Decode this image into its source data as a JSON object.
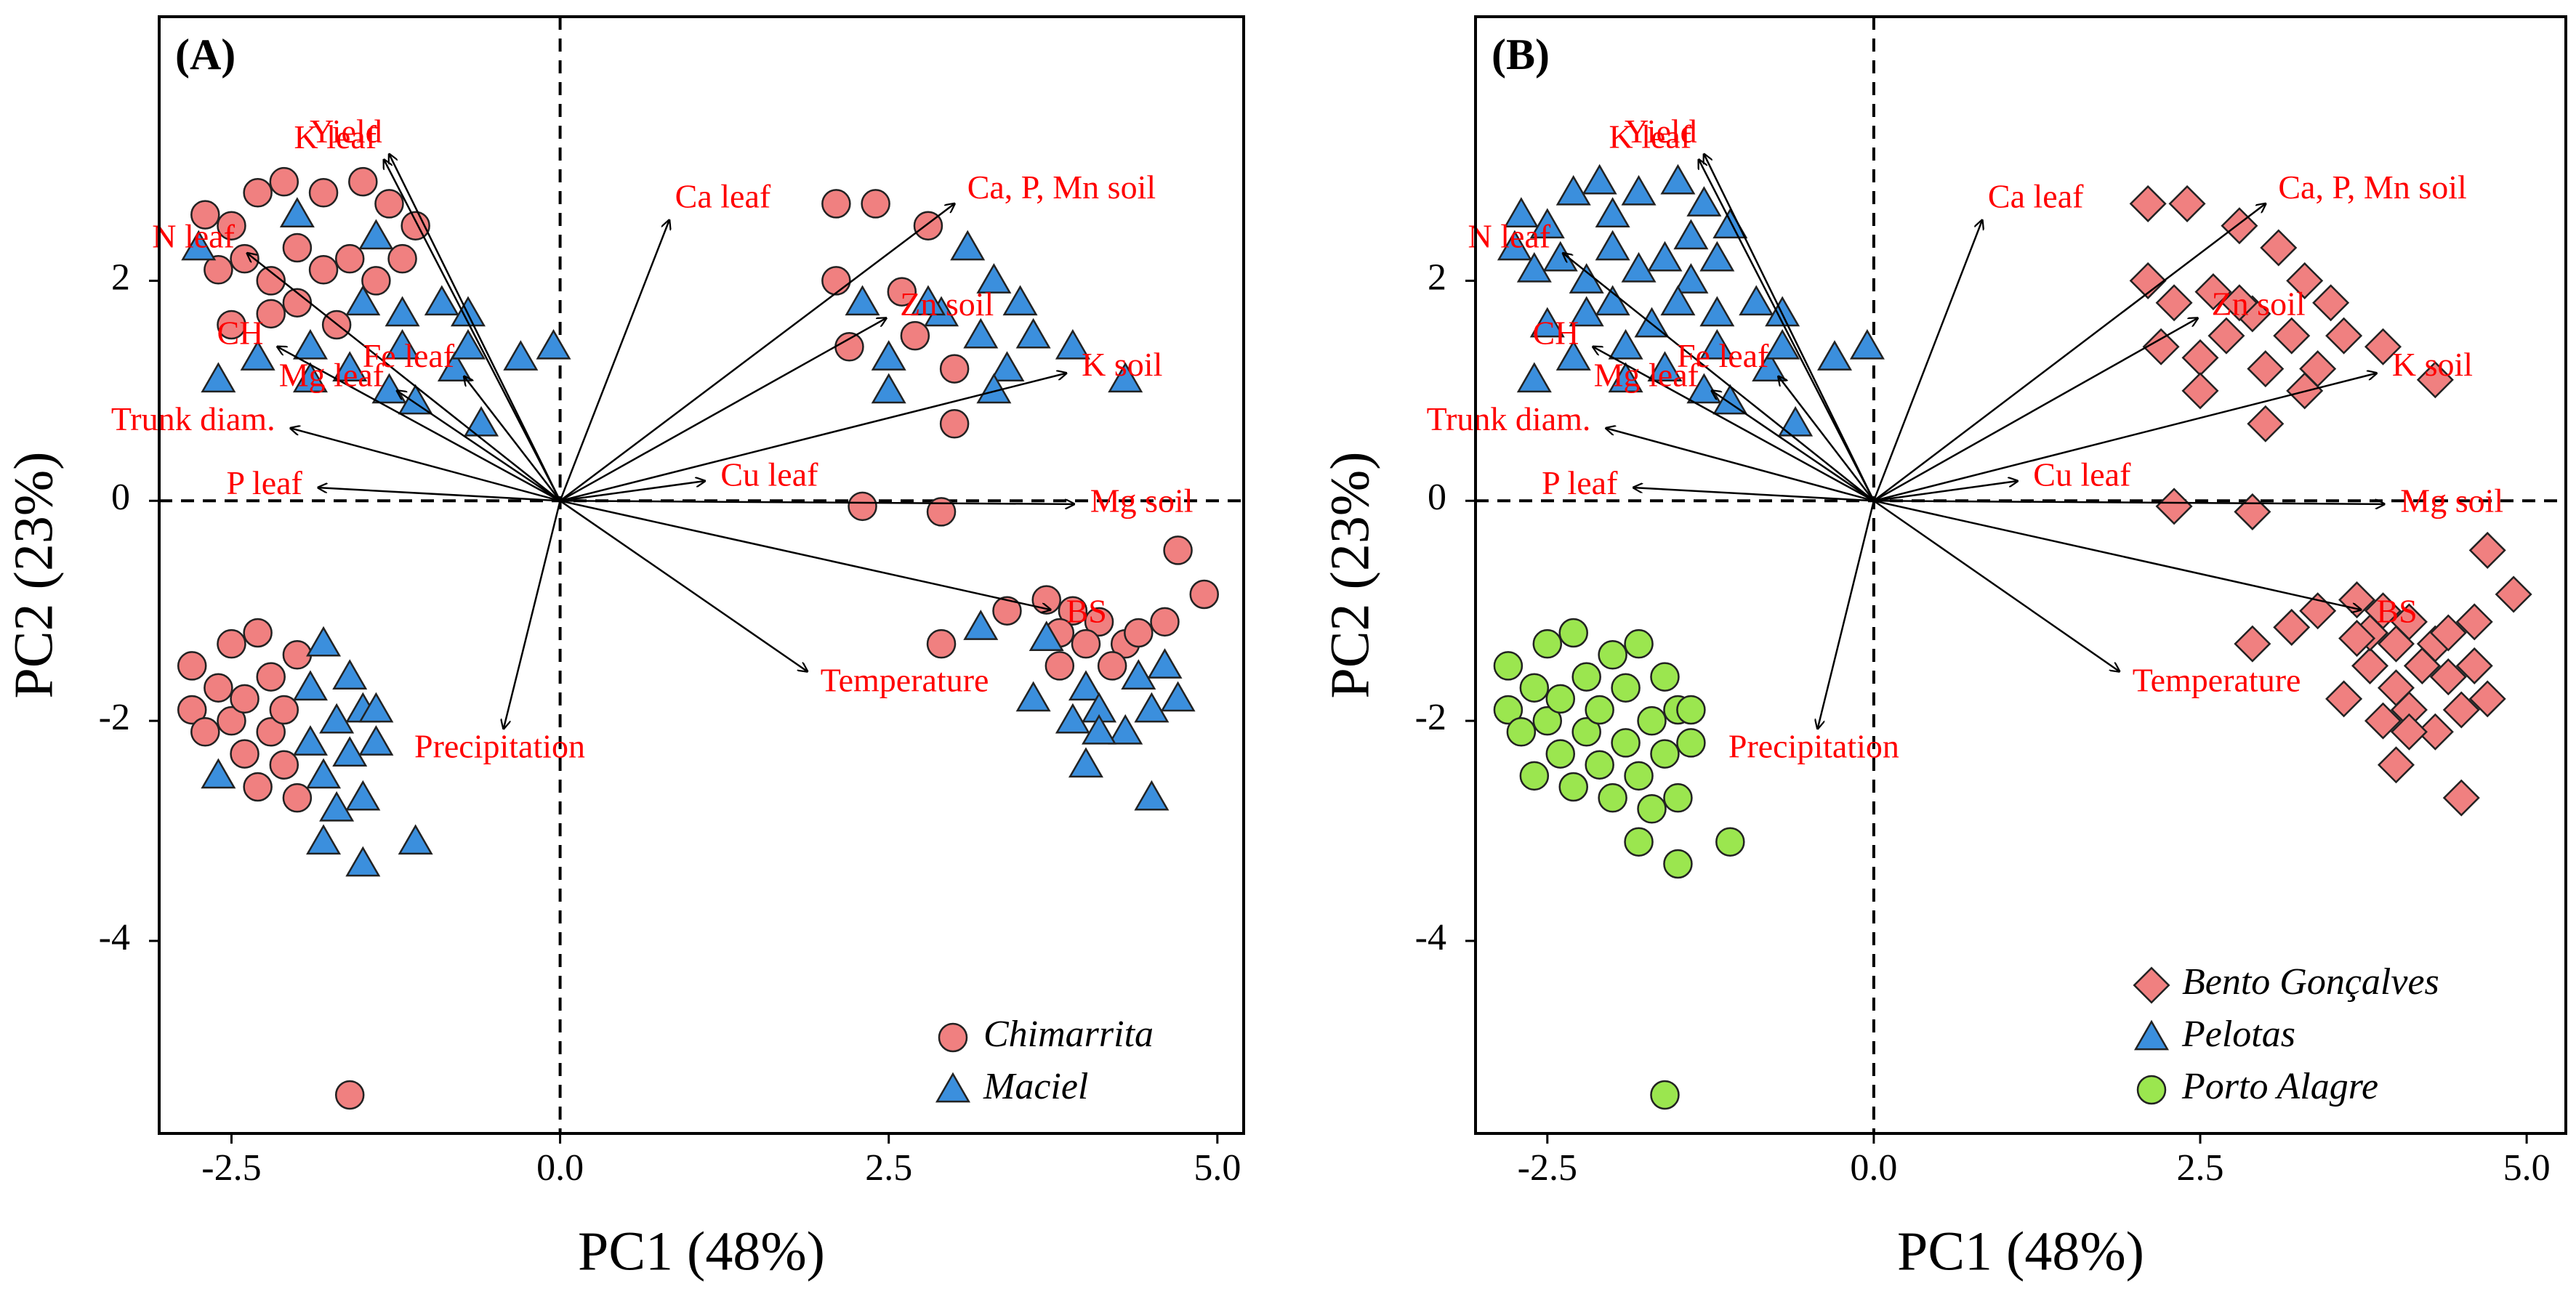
{
  "chart_data": [
    {
      "type": "biplot",
      "panel_label": "(A)",
      "x_label": "PC1 (48%)",
      "y_label": "PC2 (23%)",
      "xlim": [
        -3.05,
        5.2
      ],
      "ylim": [
        -5.75,
        4.4
      ],
      "xticks": [
        -2.5,
        {
          "value": 0,
          "label": "0.0"
        },
        2.5,
        {
          "value": 5,
          "label": "5.0"
        }
      ],
      "yticks": [
        -4,
        -2,
        0,
        2
      ],
      "zero_lines": true,
      "legend": "lower right",
      "series": [
        {
          "name": "Chimarrita",
          "color": "#f08080",
          "marker": "circle",
          "x": [
            -2.7,
            -2.5,
            -2.3,
            -2.1,
            -1.8,
            -1.5,
            -1.3,
            -1.1,
            -2.6,
            -2.4,
            -2.2,
            -2.0,
            -1.8,
            -1.6,
            -1.4,
            -1.2,
            -2.5,
            -2.2,
            -2.0,
            -1.7,
            -2.8,
            -2.8,
            -2.7,
            -2.6,
            -2.5,
            -2.5,
            -2.4,
            -2.4,
            -2.3,
            -2.3,
            -2.2,
            -2.2,
            -2.1,
            -2.1,
            -2.0,
            -2.0,
            -1.6,
            2.1,
            2.4,
            2.8,
            2.1,
            2.6,
            2.2,
            2.7,
            3.0,
            3.0,
            2.3,
            2.9,
            2.9,
            3.4,
            3.7,
            3.9,
            4.1,
            4.3,
            4.6,
            4.7,
            4.9,
            3.8,
            4.2,
            3.8,
            4.0,
            4.4
          ],
          "y": [
            2.6,
            2.5,
            2.8,
            2.9,
            2.8,
            2.9,
            2.7,
            2.5,
            2.1,
            2.2,
            2.0,
            2.3,
            2.1,
            2.2,
            2.0,
            2.2,
            1.6,
            1.7,
            1.8,
            1.6,
            -1.5,
            -1.9,
            -2.1,
            -1.7,
            -1.3,
            -2.0,
            -2.3,
            -1.8,
            -1.2,
            -2.6,
            -1.6,
            -2.1,
            -2.4,
            -1.9,
            -1.4,
            -2.7,
            -5.4,
            2.7,
            2.7,
            2.5,
            2.0,
            1.9,
            1.4,
            1.5,
            1.2,
            0.7,
            -0.05,
            -0.1,
            -1.3,
            -1.0,
            -0.9,
            -1.0,
            -1.1,
            -1.3,
            -1.1,
            -0.45,
            -0.85,
            -1.5,
            -1.5,
            -1.2,
            -1.3,
            -1.2
          ]
        },
        {
          "name": "Maciel",
          "color": "#3b8fdd",
          "marker": "triangle",
          "x": [
            -1.5,
            -1.2,
            -0.9,
            -0.7,
            -2.3,
            -1.9,
            -1.6,
            -1.3,
            -1.1,
            -0.8,
            -0.6,
            -0.3,
            -0.05,
            -1.2,
            -2.6,
            -1.9,
            -2.75,
            -2.0,
            -1.4,
            -0.7,
            -1.9,
            -1.9,
            -1.8,
            -1.8,
            -1.7,
            -1.7,
            -1.6,
            -1.6,
            -1.5,
            -1.5,
            -1.4,
            -1.8,
            -1.5,
            -1.1,
            -1.4,
            -2.6,
            3.1,
            2.3,
            2.9,
            3.3,
            3.5,
            2.5,
            3.2,
            3.4,
            3.6,
            3.9,
            4.3,
            2.5,
            3.3,
            2.8,
            3.2,
            3.6,
            4.0,
            4.4,
            4.7,
            3.9,
            4.1,
            4.3,
            4.5,
            4.0,
            4.5,
            4.6,
            4.1,
            3.7
          ],
          "y": [
            1.8,
            1.7,
            1.8,
            1.7,
            1.3,
            1.4,
            1.2,
            1.0,
            0.9,
            1.2,
            0.7,
            1.3,
            1.4,
            1.4,
            1.1,
            1.1,
            2.3,
            2.6,
            2.4,
            1.4,
            -2.2,
            -1.7,
            -1.3,
            -2.5,
            -2.0,
            -2.8,
            -1.6,
            -2.3,
            -1.9,
            -2.7,
            -2.2,
            -3.1,
            -3.3,
            -3.1,
            -1.9,
            -2.5,
            2.3,
            1.8,
            1.7,
            2.0,
            1.8,
            1.3,
            1.5,
            1.2,
            1.5,
            1.4,
            1.1,
            1.0,
            1.0,
            1.8,
            -1.15,
            -1.8,
            -1.7,
            -1.6,
            -1.8,
            -2.0,
            -1.9,
            -2.1,
            -1.9,
            -2.4,
            -2.7,
            -1.5,
            -2.1,
            -1.25
          ]
        }
      ],
      "loadings": [
        {
          "label": "Yield",
          "x": -1.3,
          "y": 3.15
        },
        {
          "label": "K leaf",
          "x": -1.34,
          "y": 3.1
        },
        {
          "label": "N leaf",
          "x": -2.38,
          "y": 2.25
        },
        {
          "label": "CH",
          "x": -2.15,
          "y": 1.4
        },
        {
          "label": "Trunk diam.",
          "x": -2.05,
          "y": 0.66
        },
        {
          "label": "P leaf",
          "x": -1.84,
          "y": 0.12
        },
        {
          "label": "Fe leaf",
          "x": -0.73,
          "y": 1.13
        },
        {
          "label": "Mg leaf",
          "x": -1.24,
          "y": 1.0
        },
        {
          "label": "Ca leaf",
          "x": 0.83,
          "y": 2.55
        },
        {
          "label": "Ca, P, Mn soil",
          "x": 3.0,
          "y": 2.7
        },
        {
          "label": "Zn soil",
          "x": 2.48,
          "y": 1.66
        },
        {
          "label": "K soil",
          "x": 3.85,
          "y": 1.16
        },
        {
          "label": "Mg soil",
          "x": 3.91,
          "y": -0.03
        },
        {
          "label": "Cu leaf",
          "x": 1.1,
          "y": 0.18
        },
        {
          "label": "BS",
          "x": 3.73,
          "y": -0.99
        },
        {
          "label": "Temperature",
          "x": 1.88,
          "y": -1.55
        },
        {
          "label": "Precipitation",
          "x": -0.43,
          "y": -2.07
        }
      ]
    },
    {
      "type": "biplot",
      "panel_label": "(B)",
      "x_label": "PC1 (48%)",
      "y_label": "PC2 (23%)",
      "xlim": [
        -3.05,
        5.3
      ],
      "ylim": [
        -5.75,
        4.4
      ],
      "xticks": [
        -2.5,
        {
          "value": 0,
          "label": "0.0"
        },
        2.5,
        {
          "value": 5,
          "label": "5.0"
        }
      ],
      "yticks": [
        -4,
        -2,
        0,
        2
      ],
      "zero_lines": true,
      "legend": "lower right",
      "series": [
        {
          "name": "Bento Gonçalves",
          "color": "#f08080",
          "marker": "diamond",
          "x": [
            2.1,
            2.4,
            2.8,
            3.1,
            2.1,
            2.3,
            2.6,
            2.9,
            3.3,
            3.5,
            2.2,
            2.5,
            2.7,
            3.0,
            3.2,
            3.4,
            3.6,
            3.9,
            4.3,
            2.5,
            3.0,
            3.3,
            2.3,
            2.9,
            2.8,
            2.9,
            3.2,
            3.4,
            3.7,
            3.9,
            4.1,
            4.3,
            4.6,
            4.7,
            4.9,
            3.6,
            3.8,
            4.0,
            4.2,
            4.4,
            4.7,
            3.9,
            4.1,
            4.3,
            4.5,
            4.0,
            4.5,
            3.8,
            4.0,
            4.6,
            4.1,
            3.7,
            4.4
          ],
          "y": [
            2.7,
            2.7,
            2.5,
            2.3,
            2.0,
            1.8,
            1.9,
            1.7,
            2.0,
            1.8,
            1.4,
            1.3,
            1.5,
            1.2,
            1.5,
            1.2,
            1.5,
            1.4,
            1.1,
            1.0,
            0.7,
            1.0,
            -0.05,
            -0.1,
            1.8,
            -1.3,
            -1.15,
            -1.0,
            -0.9,
            -1.0,
            -1.1,
            -1.3,
            -1.1,
            -0.45,
            -0.85,
            -1.8,
            -1.5,
            -1.7,
            -1.5,
            -1.6,
            -1.8,
            -2.0,
            -1.9,
            -2.1,
            -1.9,
            -2.4,
            -2.7,
            -1.2,
            -1.3,
            -1.5,
            -2.1,
            -1.25,
            -1.2
          ]
        },
        {
          "name": "Pelotas",
          "color": "#3b8fdd",
          "marker": "triangle",
          "x": [
            -2.7,
            -2.5,
            -2.3,
            -2.1,
            -1.8,
            -1.5,
            -1.3,
            -1.1,
            -2.6,
            -2.4,
            -2.2,
            -2.0,
            -1.8,
            -1.6,
            -1.4,
            -1.2,
            -2.5,
            -2.2,
            -2.0,
            -1.7,
            -1.5,
            -1.2,
            -0.9,
            -0.7,
            -2.3,
            -1.9,
            -1.6,
            -1.3,
            -1.1,
            -0.8,
            -0.6,
            -0.3,
            -0.05,
            -1.2,
            -2.6,
            -1.9,
            -2.75,
            -2.0,
            -1.4,
            -0.7
          ],
          "y": [
            2.6,
            2.5,
            2.8,
            2.9,
            2.8,
            2.9,
            2.7,
            2.5,
            2.1,
            2.2,
            2.0,
            2.3,
            2.1,
            2.2,
            2.0,
            2.2,
            1.6,
            1.7,
            1.8,
            1.6,
            1.8,
            1.7,
            1.8,
            1.7,
            1.3,
            1.4,
            1.2,
            1.0,
            0.9,
            1.2,
            0.7,
            1.3,
            1.4,
            1.4,
            1.1,
            1.1,
            2.3,
            2.6,
            2.4,
            1.4
          ]
        },
        {
          "name": "Porto Alagre",
          "color": "#9be64f",
          "marker": "circle",
          "x": [
            -2.8,
            -2.8,
            -2.7,
            -2.6,
            -2.5,
            -2.5,
            -2.4,
            -2.4,
            -2.3,
            -2.3,
            -2.2,
            -2.2,
            -2.1,
            -2.1,
            -2.0,
            -2.0,
            -1.9,
            -1.9,
            -1.8,
            -1.8,
            -1.7,
            -1.7,
            -1.6,
            -1.6,
            -1.5,
            -1.5,
            -1.4,
            -1.8,
            -1.5,
            -1.1,
            -1.4,
            -2.6,
            -1.6
          ],
          "y": [
            -1.5,
            -1.9,
            -2.1,
            -1.7,
            -1.3,
            -2.0,
            -2.3,
            -1.8,
            -1.2,
            -2.6,
            -1.6,
            -2.1,
            -2.4,
            -1.9,
            -1.4,
            -2.7,
            -2.2,
            -1.7,
            -1.3,
            -2.5,
            -2.0,
            -2.8,
            -1.6,
            -2.3,
            -1.9,
            -2.7,
            -2.2,
            -3.1,
            -3.3,
            -3.1,
            -1.9,
            -2.5,
            -5.4
          ]
        }
      ],
      "loadings": [
        {
          "label": "Yield",
          "x": -1.3,
          "y": 3.15
        },
        {
          "label": "K leaf",
          "x": -1.34,
          "y": 3.1
        },
        {
          "label": "N leaf",
          "x": -2.38,
          "y": 2.25
        },
        {
          "label": "CH",
          "x": -2.15,
          "y": 1.4
        },
        {
          "label": "Trunk diam.",
          "x": -2.05,
          "y": 0.66
        },
        {
          "label": "P leaf",
          "x": -1.84,
          "y": 0.12
        },
        {
          "label": "Fe leaf",
          "x": -0.73,
          "y": 1.13
        },
        {
          "label": "Mg leaf",
          "x": -1.24,
          "y": 1.0
        },
        {
          "label": "Ca leaf",
          "x": 0.83,
          "y": 2.55
        },
        {
          "label": "Ca, P, Mn soil",
          "x": 3.0,
          "y": 2.7
        },
        {
          "label": "Zn soil",
          "x": 2.48,
          "y": 1.66
        },
        {
          "label": "K soil",
          "x": 3.85,
          "y": 1.16
        },
        {
          "label": "Mg soil",
          "x": 3.91,
          "y": -0.03
        },
        {
          "label": "Cu leaf",
          "x": 1.1,
          "y": 0.18
        },
        {
          "label": "BS",
          "x": 3.73,
          "y": -0.99
        },
        {
          "label": "Temperature",
          "x": 1.88,
          "y": -1.55
        },
        {
          "label": "Precipitation",
          "x": -0.43,
          "y": -2.07
        }
      ]
    }
  ]
}
